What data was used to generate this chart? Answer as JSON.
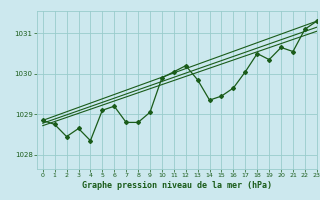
{
  "title": "Graphe pression niveau de la mer (hPa)",
  "background_color": "#cce8ee",
  "grid_color": "#99cccc",
  "line_color": "#1a5c1a",
  "xlim": [
    -0.5,
    23
  ],
  "ylim": [
    1027.65,
    1031.55
  ],
  "yticks": [
    1028,
    1029,
    1030,
    1031
  ],
  "xticks": [
    0,
    1,
    2,
    3,
    4,
    5,
    6,
    7,
    8,
    9,
    10,
    11,
    12,
    13,
    14,
    15,
    16,
    17,
    18,
    19,
    20,
    21,
    22,
    23
  ],
  "x_data": [
    0,
    1,
    2,
    3,
    4,
    5,
    6,
    7,
    8,
    9,
    10,
    11,
    12,
    13,
    14,
    15,
    16,
    17,
    18,
    19,
    20,
    21,
    22,
    23
  ],
  "y_main": [
    1028.85,
    1028.75,
    1028.45,
    1028.65,
    1028.35,
    1029.1,
    1029.2,
    1028.8,
    1028.8,
    1029.05,
    1029.9,
    1030.05,
    1030.2,
    1029.85,
    1029.35,
    1029.45,
    1029.65,
    1030.05,
    1030.5,
    1030.35,
    1030.65,
    1030.55,
    1031.1,
    1031.3
  ],
  "trend1_x": [
    0,
    23
  ],
  "trend1_y": [
    1028.85,
    1031.3
  ],
  "trend2_x": [
    0,
    23
  ],
  "trend2_y": [
    1028.78,
    1031.15
  ],
  "trend3_x": [
    0,
    23
  ],
  "trend3_y": [
    1028.72,
    1031.05
  ]
}
